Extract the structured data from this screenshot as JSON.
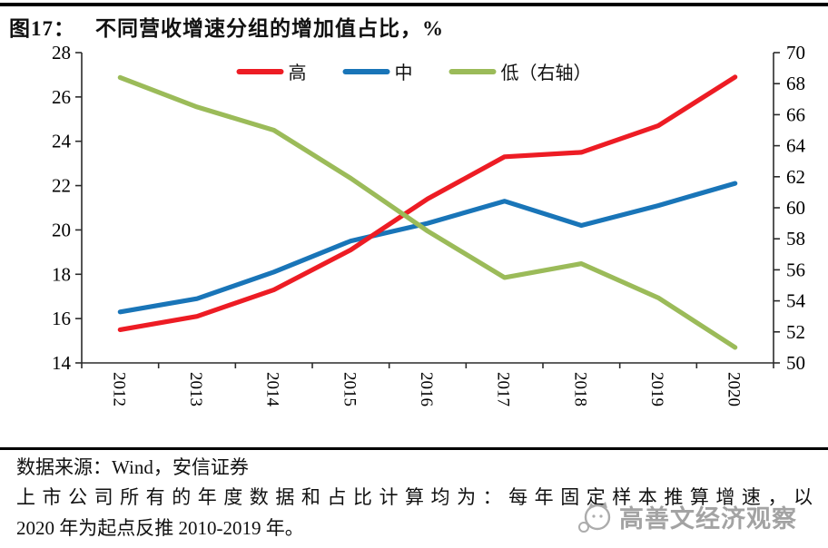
{
  "page": {
    "title_prefix": "图17：",
    "title": "不同营收增速分组的增加值占比，%"
  },
  "chart_data": {
    "type": "line",
    "title": "不同营收增速分组的增加值占比，%",
    "categories": [
      "2012",
      "2013",
      "2014",
      "2015",
      "2016",
      "2017",
      "2018",
      "2019",
      "2020"
    ],
    "series": [
      {
        "name": "高",
        "axis": "left",
        "color": "#ed1c24",
        "values": [
          15.5,
          16.1,
          17.3,
          19.1,
          21.4,
          23.3,
          23.5,
          24.7,
          26.9
        ]
      },
      {
        "name": "中",
        "axis": "left",
        "color": "#1975b8",
        "values": [
          16.3,
          16.9,
          18.1,
          19.5,
          20.3,
          21.3,
          20.2,
          21.1,
          22.1
        ]
      },
      {
        "name": "低（右轴）",
        "axis": "right",
        "color": "#9bbb59",
        "values": [
          68.4,
          66.5,
          65.0,
          61.9,
          58.5,
          55.5,
          56.4,
          54.2,
          51.0
        ]
      }
    ],
    "left_axis": {
      "min": 14,
      "max": 28,
      "ticks": [
        14,
        16,
        18,
        20,
        22,
        24,
        26,
        28
      ]
    },
    "right_axis": {
      "min": 50,
      "max": 70,
      "ticks": [
        50,
        52,
        54,
        56,
        58,
        60,
        62,
        64,
        66,
        68,
        70
      ]
    },
    "legend_position": "top-center",
    "grid": false,
    "x_label_rotation_deg": 90
  },
  "footer": {
    "source": "数据来源：Wind，安信证券",
    "note_line1": "上市公司所有的年度数据和占比计算均为：每年固定样本推算增速，以",
    "note_line2": "2020 年为起点反推 2010-2019 年。",
    "watermark": "高善文经济观察"
  }
}
